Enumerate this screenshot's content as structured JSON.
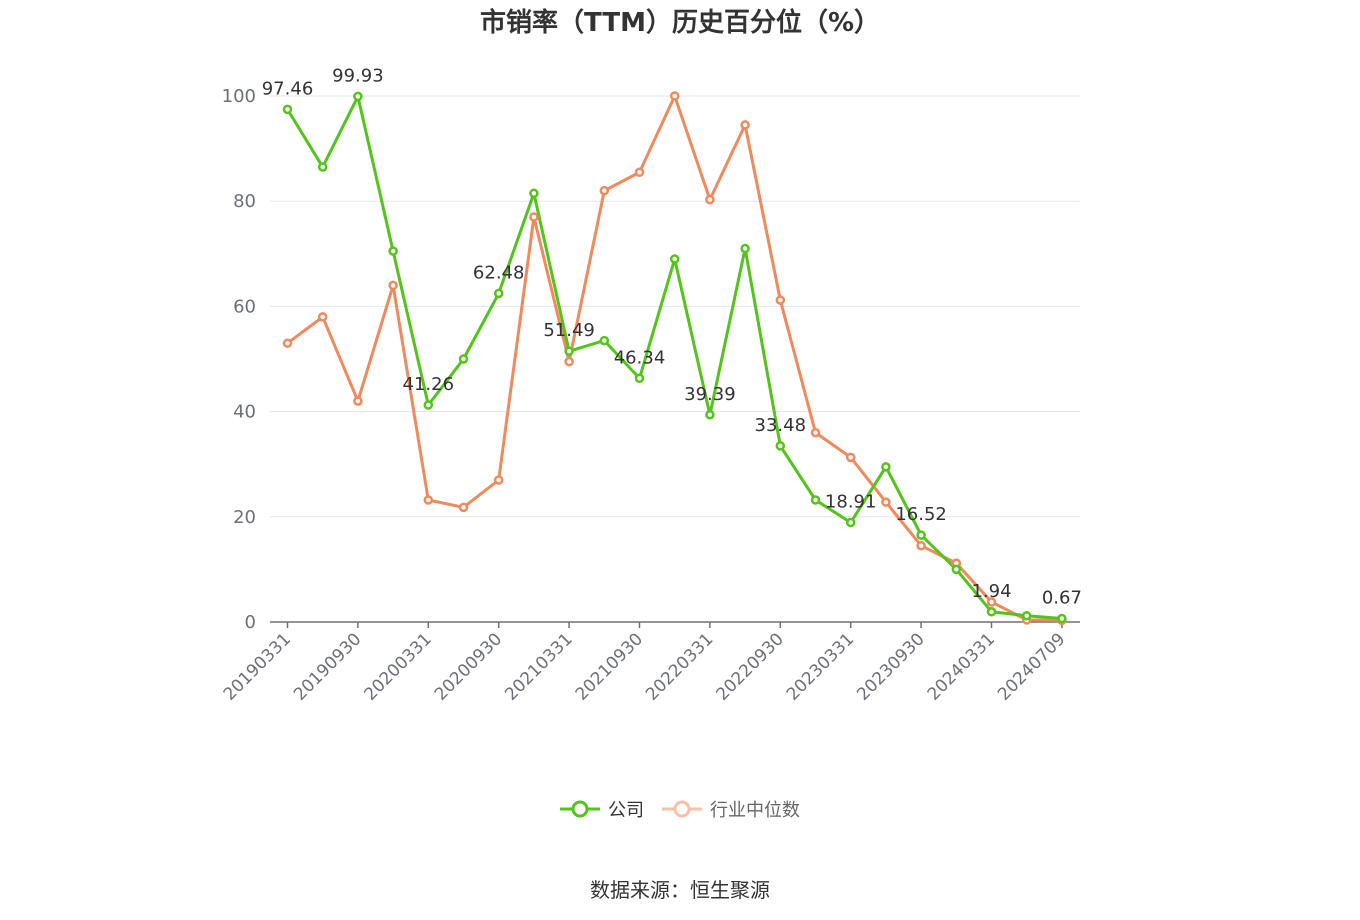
{
  "title": "市销率（TTM）历史百分位（%）",
  "source": "数据来源：恒生聚源",
  "colors": {
    "company": "#52c41a",
    "industry": "#f08a5d",
    "grid": "#e0e6f1",
    "axis": "#6e7079"
  },
  "chart_data": {
    "type": "line",
    "title": "市销率（TTM）历史百分位（%）",
    "ylim": [
      0,
      100
    ],
    "yticks": [
      0,
      20,
      40,
      60,
      80,
      100
    ],
    "grid": true,
    "legend_position": "bottom",
    "x": [
      "20190331",
      "20190630",
      "20190930",
      "20191231",
      "20200331",
      "20200630",
      "20200930",
      "20201231",
      "20210331",
      "20210630",
      "20210930",
      "20211231",
      "20220331",
      "20220630",
      "20220930",
      "20221231",
      "20230331",
      "20230630",
      "20230930",
      "20231231",
      "20240331",
      "20240630",
      "20240709"
    ],
    "xtick_labels": [
      "20190331",
      "20190930",
      "20200331",
      "20200930",
      "20210331",
      "20210930",
      "20220331",
      "20220930",
      "20230331",
      "20230930",
      "20240331",
      "20240709"
    ],
    "series": [
      {
        "name": "公司",
        "color": "#52c41a",
        "values": [
          97.46,
          86.5,
          99.93,
          70.5,
          41.26,
          50.0,
          62.48,
          81.5,
          51.49,
          53.5,
          46.34,
          69.0,
          39.39,
          71.0,
          33.48,
          23.2,
          18.91,
          29.5,
          16.52,
          10.0,
          1.94,
          1.2,
          0.67
        ],
        "labels": {
          "0": "97.46",
          "2": "99.93",
          "4": "41.26",
          "6": "62.48",
          "8": "51.49",
          "10": "46.34",
          "12": "39.39",
          "14": "33.48",
          "16": "18.91",
          "18": "16.52",
          "20": "1.94",
          "22": "0.67"
        }
      },
      {
        "name": "行业中位数",
        "color": "#f08a5d",
        "values": [
          53.0,
          58.0,
          42.0,
          64.0,
          23.2,
          21.8,
          27.0,
          77.0,
          49.5,
          82.0,
          85.5,
          100.0,
          80.3,
          94.5,
          61.2,
          36.0,
          31.3,
          22.8,
          14.5,
          11.2,
          3.8,
          0.4,
          0.3
        ]
      }
    ]
  }
}
